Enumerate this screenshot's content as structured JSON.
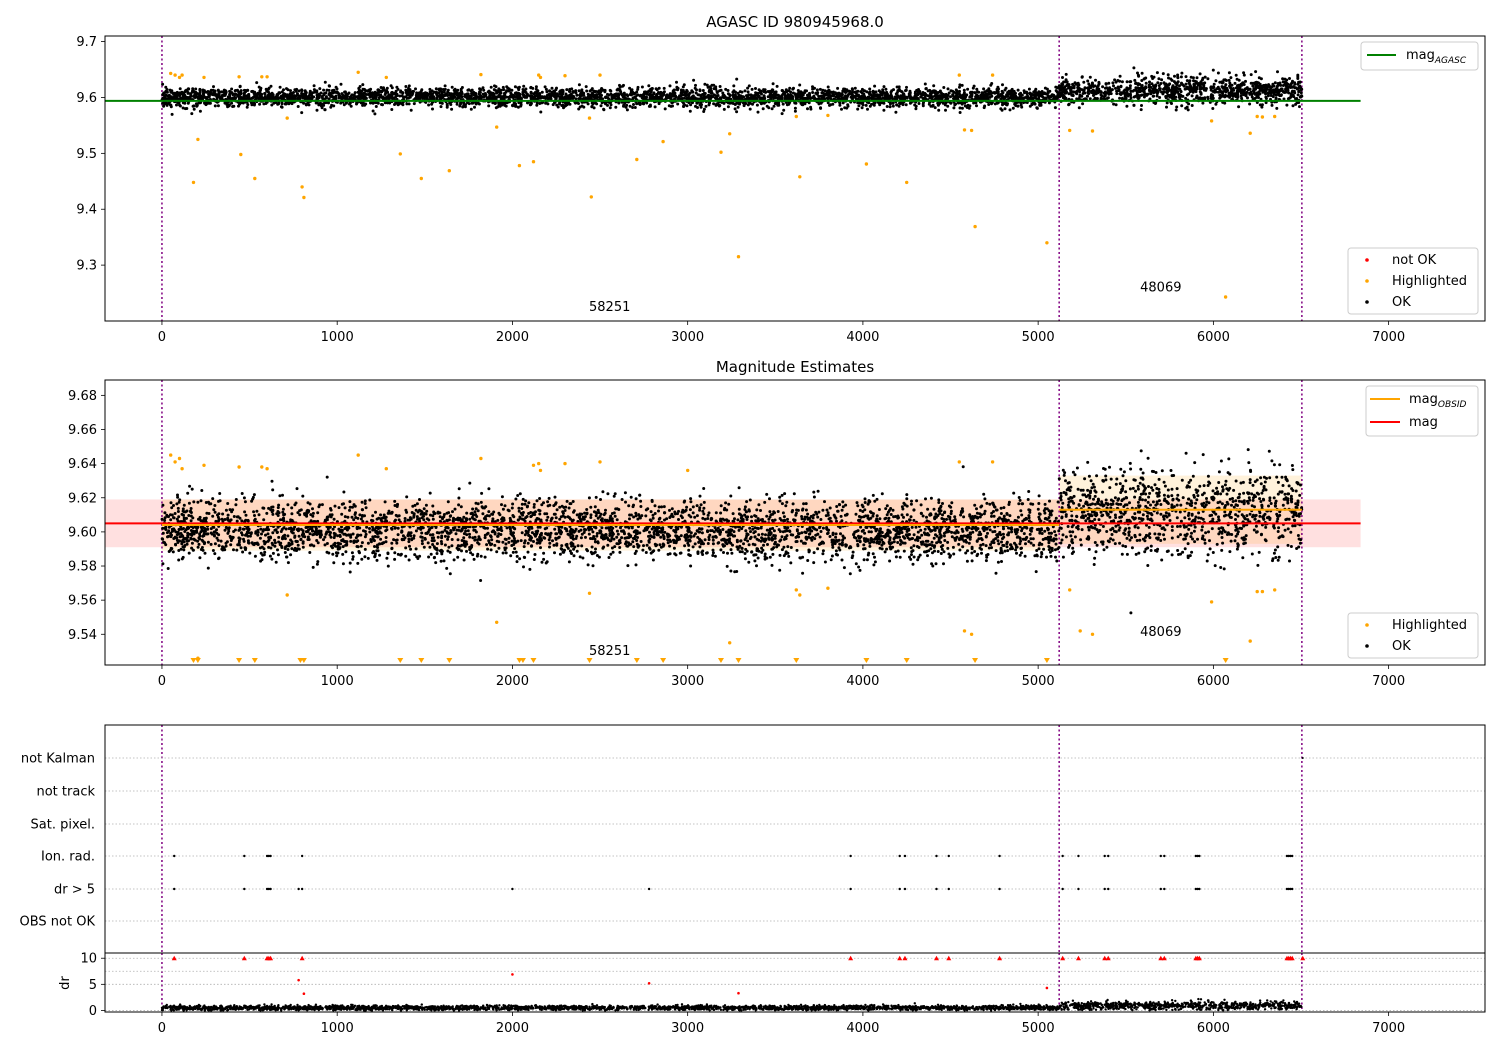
{
  "chart_data": [
    {
      "type": "scatter",
      "title": "AGASC ID 980945968.0",
      "xlabel": "",
      "ylabel": "",
      "xlim": [
        -325,
        7550
      ],
      "ylim": [
        9.2,
        9.71
      ],
      "x_ticks": [
        0,
        1000,
        2000,
        3000,
        4000,
        5000,
        6000,
        7000
      ],
      "y_ticks": [
        9.3,
        9.4,
        9.5,
        9.6,
        9.7
      ],
      "grid": false,
      "legend_top": {
        "placement": "top-right",
        "entries": [
          {
            "label": "mag",
            "sub": "AGASC",
            "color": "#008000",
            "kind": "line"
          }
        ]
      },
      "legend_bottom": {
        "placement": "bottom-right",
        "entries": [
          {
            "label": "not OK",
            "color": "#ff0000",
            "kind": "dot"
          },
          {
            "label": "Highlighted",
            "color": "#ffa500",
            "kind": "dot"
          },
          {
            "label": "OK",
            "color": "#000000",
            "kind": "dot"
          }
        ]
      },
      "obs_boundaries": [
        0,
        5120,
        6505
      ],
      "obs_labels": [
        {
          "text": "58251",
          "x": 2555,
          "y": 9.218
        },
        {
          "text": "48069",
          "x": 5700,
          "y": 9.253
        }
      ],
      "agasc_mag": {
        "value": 9.594,
        "x": [
          -325,
          6840
        ]
      },
      "ok_series": {
        "segments": [
          {
            "x_start": 0,
            "x_end": 5120,
            "center": 9.6,
            "spread": 0.014
          },
          {
            "x_start": 5120,
            "x_end": 6505,
            "center": 9.612,
            "spread": 0.02
          }
        ]
      },
      "highlighted_points": {
        "x": [
          50,
          75,
          100,
          115,
          180,
          205,
          240,
          440,
          450,
          530,
          570,
          600,
          715,
          800,
          810,
          1120,
          1280,
          1360,
          1480,
          1640,
          1820,
          1910,
          2040,
          2120,
          2150,
          2160,
          2300,
          2440,
          2450,
          2500,
          2710,
          2860,
          3190,
          3240,
          3290,
          3620,
          3640,
          3800,
          4020,
          4250,
          4550,
          4580,
          4620,
          4640,
          4740,
          5050,
          5180,
          5310,
          5990,
          6070,
          6210,
          6250,
          6280,
          6350
        ],
        "y": [
          9.643,
          9.64,
          9.636,
          9.64,
          9.448,
          9.525,
          9.636,
          9.637,
          9.498,
          9.455,
          9.637,
          9.637,
          9.563,
          9.44,
          9.421,
          9.645,
          9.636,
          9.499,
          9.455,
          9.469,
          9.641,
          9.547,
          9.478,
          9.485,
          9.64,
          9.636,
          9.639,
          9.563,
          9.422,
          9.64,
          9.489,
          9.521,
          9.502,
          9.535,
          9.315,
          9.566,
          9.458,
          9.568,
          9.481,
          9.448,
          9.64,
          9.542,
          9.541,
          9.369,
          9.64,
          9.34,
          9.541,
          9.54,
          9.558,
          9.243,
          9.536,
          9.566,
          9.565,
          9.566
        ]
      }
    },
    {
      "type": "scatter",
      "title": "Magnitude Estimates",
      "xlabel": "",
      "ylabel": "",
      "xlim": [
        -325,
        7550
      ],
      "ylim": [
        9.522,
        9.689
      ],
      "x_ticks": [
        0,
        1000,
        2000,
        3000,
        4000,
        5000,
        6000,
        7000
      ],
      "y_ticks": [
        9.54,
        9.56,
        9.58,
        9.6,
        9.62,
        9.64,
        9.66,
        9.68
      ],
      "grid": false,
      "legend_top": {
        "placement": "top-right",
        "entries": [
          {
            "label": "mag",
            "sub": "OBSID",
            "color": "#ffa500",
            "kind": "line"
          },
          {
            "label": "mag",
            "sub": "",
            "color": "#ff0000",
            "kind": "line"
          }
        ]
      },
      "legend_bottom": {
        "placement": "bottom-right",
        "entries": [
          {
            "label": "Highlighted",
            "color": "#ffa500",
            "kind": "dot"
          },
          {
            "label": "OK",
            "color": "#000000",
            "kind": "dot"
          }
        ]
      },
      "obs_boundaries": [
        0,
        5120,
        6505
      ],
      "obs_labels": [
        {
          "text": "58251",
          "x": 2555,
          "y": 9.528
        },
        {
          "text": "48069",
          "x": 5700,
          "y": 9.539
        }
      ],
      "mag": {
        "value": 9.605,
        "band": [
          9.591,
          9.619
        ],
        "x": [
          -325,
          6840
        ]
      },
      "mag_obsid": [
        {
          "x": [
            0,
            5120
          ],
          "value": 9.604,
          "band": [
            9.589,
            9.619
          ]
        },
        {
          "x": [
            5120,
            6505
          ],
          "value": 9.613,
          "band": [
            9.593,
            9.633
          ]
        }
      ],
      "ok_series": {
        "segments": [
          {
            "x_start": 0,
            "x_end": 5120,
            "center": 9.601,
            "spread": 0.014
          },
          {
            "x_start": 5120,
            "x_end": 6505,
            "center": 9.612,
            "spread": 0.02
          }
        ]
      },
      "highlighted_points": {
        "x": [
          50,
          75,
          100,
          115,
          205,
          240,
          440,
          570,
          600,
          715,
          1120,
          1280,
          1820,
          1910,
          2120,
          2150,
          2160,
          2300,
          2440,
          2500,
          3000,
          3240,
          3620,
          3640,
          3800,
          4550,
          4580,
          4620,
          4740,
          5180,
          5240,
          5310,
          5990,
          6210,
          6250,
          6280,
          6350
        ],
        "y": [
          9.645,
          9.641,
          9.643,
          9.637,
          9.526,
          9.639,
          9.638,
          9.638,
          9.637,
          9.563,
          9.645,
          9.637,
          9.643,
          9.547,
          9.639,
          9.64,
          9.636,
          9.64,
          9.564,
          9.641,
          9.636,
          9.535,
          9.566,
          9.563,
          9.567,
          9.641,
          9.542,
          9.54,
          9.641,
          9.566,
          9.542,
          9.54,
          9.559,
          9.536,
          9.565,
          9.565,
          9.566
        ]
      },
      "below_range_markers": {
        "x": [
          180,
          205,
          440,
          530,
          790,
          810,
          1360,
          1480,
          1640,
          2040,
          2060,
          2120,
          2440,
          2710,
          2860,
          3190,
          3290,
          3620,
          4020,
          4250,
          4640,
          5050,
          6070
        ]
      }
    },
    {
      "type": "scatter",
      "title": "",
      "xlabel": "",
      "ylabel": "",
      "xlim": [
        -325,
        7550
      ],
      "flags_panel": {
        "categories": [
          "not Kalman",
          "not track",
          "Sat. pixel.",
          "Ion. rad.",
          "dr > 5",
          "OBS not OK"
        ],
        "ion_rad_x": [
          70,
          470,
          600,
          610,
          620,
          800,
          3930,
          4210,
          4240,
          4420,
          4490,
          4780,
          5140,
          5230,
          5380,
          5400,
          5700,
          5720,
          5900,
          5910,
          5920,
          6420,
          6430,
          6440,
          6450
        ],
        "dr5_x": [
          70,
          470,
          600,
          610,
          620,
          780,
          800,
          2000,
          2780,
          3930,
          4210,
          4240,
          4420,
          4490,
          4780,
          5140,
          5230,
          5380,
          5400,
          5700,
          5720,
          5900,
          5910,
          5920,
          6420,
          6430,
          6440,
          6450
        ],
        "obs_not_ok_x": []
      },
      "dr_panel": {
        "ylabel": "dr",
        "ylim": [
          -0.3,
          11.0
        ],
        "y_ticks": [
          0,
          5,
          10
        ],
        "cap_value": 10,
        "capped_x": [
          70,
          470,
          600,
          610,
          620,
          800,
          3930,
          4210,
          4240,
          4420,
          4490,
          4780,
          5140,
          5230,
          5380,
          5400,
          5700,
          5720,
          5900,
          5910,
          5920,
          6420,
          6430,
          6440,
          6450,
          6510
        ],
        "outliers": {
          "x": [
            780,
            810,
            2000,
            2780,
            3290,
            5050
          ],
          "y": [
            5.8,
            3.2,
            6.9,
            5.2,
            3.3,
            4.3
          ]
        },
        "segments": [
          {
            "x_start": 0,
            "x_end": 5120,
            "center": 0.5,
            "spread": 0.25
          },
          {
            "x_start": 5120,
            "x_end": 6505,
            "center": 0.9,
            "spread": 0.45
          }
        ]
      }
    }
  ]
}
